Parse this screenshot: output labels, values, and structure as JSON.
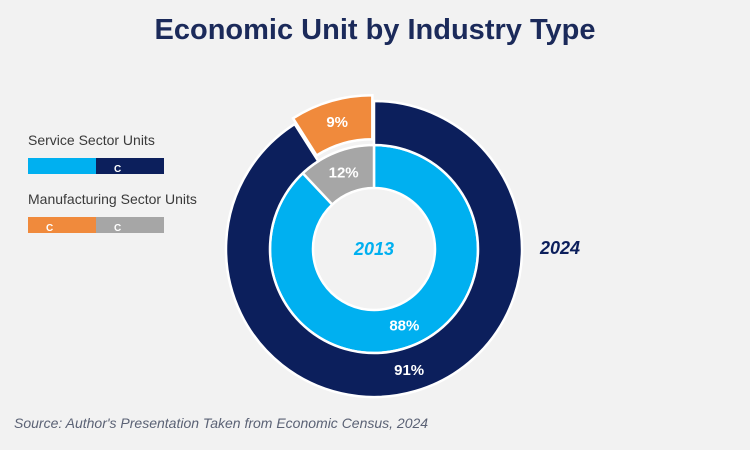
{
  "title": "Economic Unit by Industry Type",
  "legend": [
    {
      "group": "Service Sector Units",
      "swatches": [
        {
          "color": "#00b0f0",
          "label": ""
        },
        {
          "color": "#0c1f5c",
          "label": "C"
        }
      ]
    },
    {
      "group": "Manufacturing Sector Units",
      "swatches": [
        {
          "color": "#f08a3c",
          "label": "C"
        },
        {
          "color": "#a6a6a6",
          "label": "C"
        }
      ]
    }
  ],
  "source": "Source: Author's Presentation Taken from Economic Census, 2024",
  "chart_data": {
    "type": "pie",
    "subtype": "nested-donut",
    "rings": [
      {
        "name": "2013",
        "ring": "inner",
        "label_style": "center",
        "label_color": "#00b0f0",
        "slices": [
          {
            "name": "Service Sector Units",
            "value": 88,
            "label": "88%",
            "color": "#00b0f0"
          },
          {
            "name": "Manufacturing Sector Units",
            "value": 12,
            "label": "12%",
            "color": "#a6a6a6"
          }
        ]
      },
      {
        "name": "2024",
        "ring": "outer",
        "label_style": "outside-right",
        "label_color": "#0c1f5c",
        "slices": [
          {
            "name": "Service Sector Units",
            "value": 91,
            "label": "91%",
            "color": "#0c1f5c"
          },
          {
            "name": "Manufacturing Sector Units",
            "value": 9,
            "label": "9%",
            "color": "#f08a3c"
          }
        ]
      }
    ]
  }
}
